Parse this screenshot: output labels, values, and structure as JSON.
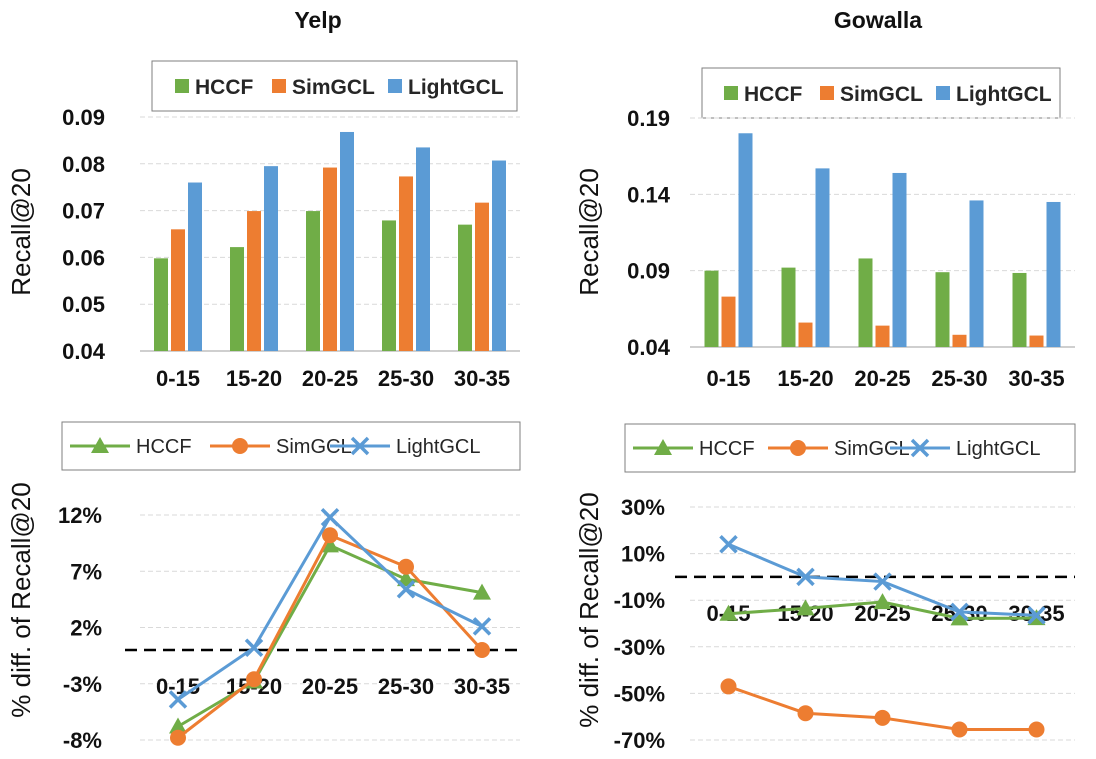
{
  "colors": {
    "hccf": "#70AD47",
    "simgcl": "#ED7D31",
    "lightgcl": "#5B9BD5",
    "grid": "#d9d9d9",
    "zero_line": "#000000",
    "text": "#111111"
  },
  "chart_data": [
    {
      "id": "yelp-bar",
      "type": "bar",
      "title": "Yelp",
      "xlabel": "",
      "ylabel": "Recall@20",
      "categories": [
        "0-15",
        "15-20",
        "20-25",
        "25-30",
        "30-35"
      ],
      "ylim": [
        0.04,
        0.09
      ],
      "yticks": [
        0.04,
        0.05,
        0.06,
        0.07,
        0.08,
        0.09
      ],
      "ytick_labels": [
        "0.04",
        "0.05",
        "0.06",
        "0.07",
        "0.08",
        "0.09"
      ],
      "legend": "top-center",
      "grid": true,
      "series": [
        {
          "name": "HCCF",
          "color_key": "hccf",
          "values": [
            0.0598,
            0.0622,
            0.0699,
            0.0679,
            0.067
          ]
        },
        {
          "name": "SimGCL",
          "color_key": "simgcl",
          "values": [
            0.066,
            0.0699,
            0.0792,
            0.0773,
            0.0717
          ]
        },
        {
          "name": "LightGCL",
          "color_key": "lightgcl",
          "values": [
            0.076,
            0.0795,
            0.0868,
            0.0835,
            0.0807
          ]
        }
      ]
    },
    {
      "id": "gowalla-bar",
      "type": "bar",
      "title": "Gowalla",
      "xlabel": "",
      "ylabel": "Recall@20",
      "categories": [
        "0-15",
        "15-20",
        "20-25",
        "25-30",
        "30-35"
      ],
      "ylim": [
        0.04,
        0.19
      ],
      "yticks": [
        0.04,
        0.09,
        0.14,
        0.19
      ],
      "ytick_labels": [
        "0.04",
        "0.09",
        "0.14",
        "0.19"
      ],
      "legend": "top-center",
      "grid": true,
      "series": [
        {
          "name": "HCCF",
          "color_key": "hccf",
          "values": [
            0.09,
            0.092,
            0.098,
            0.089,
            0.0885
          ]
        },
        {
          "name": "SimGCL",
          "color_key": "simgcl",
          "values": [
            0.073,
            0.056,
            0.054,
            0.048,
            0.0475
          ]
        },
        {
          "name": "LightGCL",
          "color_key": "lightgcl",
          "values": [
            0.18,
            0.157,
            0.154,
            0.136,
            0.135
          ]
        }
      ]
    },
    {
      "id": "yelp-line",
      "type": "line",
      "title": "",
      "xlabel": "",
      "ylabel": "% diff. of Recall@20",
      "categories": [
        "0-15",
        "15-20",
        "20-25",
        "25-30",
        "30-35"
      ],
      "ylim": [
        -8,
        12
      ],
      "yticks": [
        -8,
        -3,
        2,
        7,
        12
      ],
      "ytick_labels": [
        "-8%",
        "-3%",
        "2%",
        "7%",
        "12%"
      ],
      "zero_line": 0,
      "legend": "top",
      "grid": true,
      "series": [
        {
          "name": "HCCF",
          "color_key": "hccf",
          "marker": "triangle",
          "values": [
            -6.8,
            -2.8,
            9.3,
            6.3,
            5.1
          ]
        },
        {
          "name": "SimGCL",
          "color_key": "simgcl",
          "marker": "circle",
          "values": [
            -7.8,
            -2.6,
            10.2,
            7.4,
            0.0
          ]
        },
        {
          "name": "LightGCL",
          "color_key": "lightgcl",
          "marker": "x",
          "values": [
            -4.4,
            0.2,
            11.8,
            5.4,
            2.1
          ]
        }
      ]
    },
    {
      "id": "gowalla-line",
      "type": "line",
      "title": "",
      "xlabel": "",
      "ylabel": "% diff. of Recall@20",
      "categories": [
        "0-15",
        "15-20",
        "20-25",
        "25-30",
        "30-35"
      ],
      "ylim": [
        -70,
        30
      ],
      "yticks": [
        -70,
        -50,
        -30,
        -10,
        10,
        30
      ],
      "ytick_labels": [
        "-70%",
        "-50%",
        "-30%",
        "-10%",
        "10%",
        "30%"
      ],
      "zero_line": 0,
      "legend": "top",
      "grid": true,
      "series": [
        {
          "name": "HCCF",
          "color_key": "hccf",
          "marker": "triangle",
          "values": [
            -15.8,
            -13.5,
            -10.8,
            -17.8,
            -17.7
          ]
        },
        {
          "name": "SimGCL",
          "color_key": "simgcl",
          "marker": "circle",
          "values": [
            -47.0,
            -58.5,
            -60.5,
            -65.5,
            -65.5
          ]
        },
        {
          "name": "LightGCL",
          "color_key": "lightgcl",
          "marker": "x",
          "values": [
            14.0,
            0.0,
            -2.0,
            -15.0,
            -16.5
          ]
        }
      ]
    }
  ]
}
